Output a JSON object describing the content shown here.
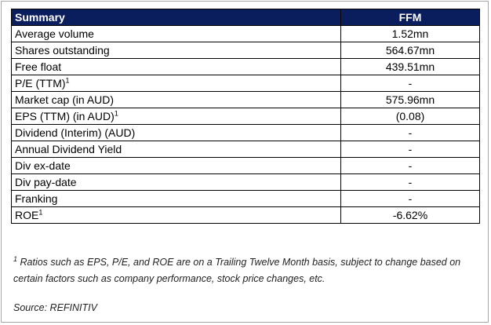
{
  "table": {
    "header": {
      "label": "Summary",
      "value": "FFM"
    },
    "rows": [
      {
        "label": "Average volume",
        "sup": "",
        "value": "1.52mn"
      },
      {
        "label": "Shares outstanding",
        "sup": "",
        "value": "564.67mn"
      },
      {
        "label": "Free float",
        "sup": "",
        "value": "439.51mn"
      },
      {
        "label": "P/E (TTM)",
        "sup": "1",
        "value": "-"
      },
      {
        "label": "Market cap (in AUD)",
        "sup": "",
        "value": "575.96mn"
      },
      {
        "label": "EPS (TTM) (in AUD)",
        "sup": "1",
        "value": "(0.08)"
      },
      {
        "label": "Dividend (Interim) (AUD)",
        "sup": "",
        "value": "-"
      },
      {
        "label": "Annual Dividend Yield",
        "sup": "",
        "value": "-"
      },
      {
        "label": "Div ex-date",
        "sup": "",
        "value": "-"
      },
      {
        "label": "Div pay-date",
        "sup": "",
        "value": "-"
      },
      {
        "label": "Franking",
        "sup": "",
        "value": "-"
      },
      {
        "label": "ROE",
        "sup": "1",
        "value": "-6.62%"
      }
    ]
  },
  "footnote": {
    "marker": "1",
    "text": " Ratios such as EPS, P/E, and ROE are on a Trailing Twelve Month basis, subject to change based on certain factors such as company performance, stock price changes, etc."
  },
  "source": "Source: REFINITIV",
  "colors": {
    "header_bg": "#0a1e5e",
    "header_text": "#ffffff",
    "border": "#000000"
  }
}
